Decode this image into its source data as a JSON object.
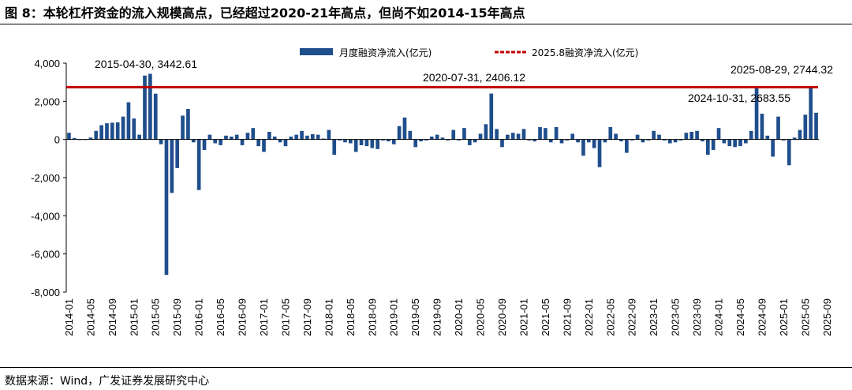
{
  "header": {
    "title": "图 8：本轮杠杆资金的流入规模高点，已经超过2020-21年高点，但尚不如2014-15年高点"
  },
  "footer": {
    "source": "数据来源：Wind，广发证券发展研究中心"
  },
  "chart_data": {
    "type": "bar",
    "ylim": [
      -8000,
      4000
    ],
    "yticks": [
      "4,000",
      "2,000",
      "0",
      "-2,000",
      "-4,000",
      "-6,000",
      "-8,000"
    ],
    "yticks_values": [
      4000,
      2000,
      0,
      -2000,
      -4000,
      -6000,
      -8000
    ],
    "xticks": [
      "2014-01",
      "2014-05",
      "2014-09",
      "2015-01",
      "2015-05",
      "2015-09",
      "2016-01",
      "2016-05",
      "2016-09",
      "2017-01",
      "2017-05",
      "2017-09",
      "2018-01",
      "2018-05",
      "2018-09",
      "2019-01",
      "2019-05",
      "2019-09",
      "2020-01",
      "2020-05",
      "2020-09",
      "2021-01",
      "2021-05",
      "2021-09",
      "2022-01",
      "2022-05",
      "2022-09",
      "2023-01",
      "2023-05",
      "2023-09",
      "2024-01",
      "2024-05",
      "2024-09",
      "2025-01",
      "2025-05",
      "2025-09"
    ],
    "legend_position": "top-center",
    "grid": false,
    "series": [
      {
        "name": "月度融资净流入(亿元)",
        "color": "#1F4E8C",
        "values": [
          350,
          80,
          -30,
          -20,
          100,
          450,
          750,
          850,
          880,
          900,
          1200,
          1950,
          1100,
          250,
          3350,
          3442.61,
          2400,
          -250,
          -7100,
          -2800,
          -1500,
          1250,
          1600,
          -150,
          -2650,
          -550,
          250,
          -200,
          -300,
          200,
          150,
          250,
          -300,
          350,
          600,
          -350,
          -650,
          400,
          150,
          -150,
          -350,
          150,
          250,
          450,
          200,
          280,
          250,
          50,
          500,
          -800,
          -50,
          -150,
          -200,
          -650,
          -300,
          -350,
          -450,
          -500,
          -50,
          -100,
          -250,
          700,
          1150,
          450,
          -400,
          -100,
          -50,
          150,
          250,
          100,
          -50,
          500,
          -50,
          600,
          -300,
          -150,
          300,
          800,
          2406.12,
          550,
          -400,
          250,
          350,
          300,
          550,
          -50,
          -100,
          650,
          600,
          -150,
          650,
          -200,
          -50,
          300,
          -150,
          -850,
          -150,
          -450,
          -1450,
          -150,
          650,
          300,
          -100,
          -700,
          -50,
          250,
          -150,
          -50,
          450,
          250,
          -50,
          -200,
          -150,
          -50,
          350,
          400,
          450,
          -100,
          -800,
          -550,
          600,
          -200,
          -350,
          -400,
          -350,
          -200,
          450,
          2683.55,
          1350,
          200,
          -900,
          1200,
          -50,
          -1350,
          100,
          500,
          1300,
          2744.32,
          1400
        ]
      },
      {
        "name": "2025.8融资净流入(亿元)",
        "color": "#C00000",
        "value": 2744.32
      }
    ],
    "annotations": [
      {
        "text": "2015-04-30, 3442.61"
      },
      {
        "text": "2020-07-31, 2406.12"
      },
      {
        "text": "2025-08-29, 2744.32"
      },
      {
        "text": "2024-10-31, 2683.55"
      }
    ]
  }
}
